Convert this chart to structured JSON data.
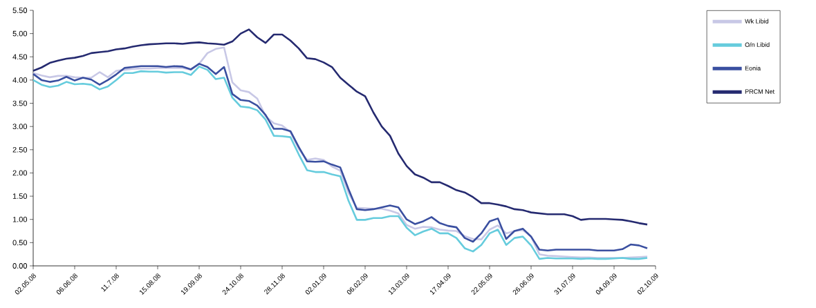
{
  "chart_data": {
    "type": "line",
    "categories": [
      "02.05.08",
      null,
      null,
      null,
      null,
      "06.06.08",
      null,
      null,
      null,
      null,
      "11.7.08",
      null,
      null,
      null,
      null,
      "15.08.08",
      null,
      null,
      null,
      null,
      "19.09.08",
      null,
      null,
      null,
      null,
      "24.10.08",
      null,
      null,
      null,
      null,
      "28.11.08",
      null,
      null,
      null,
      null,
      "02.01.09",
      null,
      null,
      null,
      null,
      "06.02.09",
      null,
      null,
      null,
      null,
      "13.03.09",
      null,
      null,
      null,
      null,
      "17.04.09",
      null,
      null,
      null,
      null,
      "22.05.09",
      null,
      null,
      null,
      null,
      "26.06.09",
      null,
      null,
      null,
      null,
      "31.07.09",
      null,
      null,
      null,
      null,
      "04.09.09",
      null,
      null,
      null,
      null,
      "02.10.09"
    ],
    "series": [
      {
        "name": "Wk Libid",
        "color": "#c8c8e6",
        "values": [
          4.15,
          4.1,
          4.06,
          4.09,
          4.09,
          4.06,
          4.05,
          4.05,
          4.17,
          4.06,
          4.2,
          4.22,
          4.24,
          4.25,
          4.25,
          4.26,
          4.26,
          4.26,
          4.26,
          4.22,
          4.35,
          4.58,
          4.67,
          4.7,
          3.95,
          3.78,
          3.74,
          3.6,
          3.22,
          3.07,
          3.02,
          2.88,
          2.52,
          2.28,
          2.31,
          2.28,
          2.14,
          2.05,
          1.57,
          1.25,
          1.24,
          1.23,
          1.23,
          1.19,
          1.13,
          0.88,
          0.8,
          0.84,
          0.83,
          0.78,
          0.76,
          0.75,
          0.64,
          0.58,
          0.57,
          0.78,
          0.87,
          0.7,
          0.75,
          0.77,
          0.63,
          0.25,
          0.22,
          0.21,
          0.2,
          0.19,
          0.18,
          0.18,
          0.17,
          0.17,
          0.17,
          0.17,
          0.18,
          0.19,
          0.2,
          null
        ]
      },
      {
        "name": "O/n Libid",
        "color": "#66ccdd",
        "values": [
          4.0,
          3.9,
          3.85,
          3.88,
          3.96,
          3.91,
          3.92,
          3.9,
          3.8,
          3.86,
          4.0,
          4.15,
          4.15,
          4.19,
          4.18,
          4.18,
          4.16,
          4.17,
          4.17,
          4.11,
          4.29,
          4.22,
          4.02,
          4.05,
          3.62,
          3.43,
          3.41,
          3.35,
          3.15,
          2.8,
          2.79,
          2.77,
          2.4,
          2.06,
          2.02,
          2.02,
          1.97,
          1.93,
          1.4,
          0.99,
          0.99,
          1.03,
          1.03,
          1.07,
          1.07,
          0.82,
          0.66,
          0.74,
          0.8,
          0.7,
          0.7,
          0.6,
          0.38,
          0.31,
          0.45,
          0.7,
          0.78,
          0.45,
          0.6,
          0.63,
          0.44,
          0.15,
          0.17,
          0.16,
          0.16,
          0.16,
          0.15,
          0.16,
          0.15,
          0.15,
          0.16,
          0.17,
          0.15,
          0.15,
          0.17,
          null
        ]
      },
      {
        "name": "Eonia",
        "color": "#3a4fa0",
        "values": [
          4.13,
          4.0,
          3.96,
          3.99,
          4.07,
          3.99,
          4.05,
          4.01,
          3.9,
          4.0,
          4.12,
          4.26,
          4.28,
          4.3,
          4.3,
          4.3,
          4.28,
          4.3,
          4.29,
          4.23,
          4.35,
          4.28,
          4.13,
          4.28,
          3.7,
          3.57,
          3.55,
          3.45,
          3.25,
          2.95,
          2.95,
          2.9,
          2.56,
          2.25,
          2.24,
          2.25,
          2.18,
          2.12,
          1.65,
          1.22,
          1.2,
          1.22,
          1.26,
          1.3,
          1.26,
          1.0,
          0.9,
          0.96,
          1.05,
          0.92,
          0.86,
          0.83,
          0.6,
          0.52,
          0.7,
          0.96,
          1.02,
          0.58,
          0.75,
          0.8,
          0.63,
          0.35,
          0.33,
          0.35,
          0.35,
          0.35,
          0.35,
          0.35,
          0.33,
          0.33,
          0.33,
          0.36,
          0.46,
          0.44,
          0.38,
          null
        ]
      },
      {
        "name": "PRCM Net",
        "color": "#252a70",
        "values": [
          4.2,
          4.27,
          4.37,
          4.42,
          4.46,
          4.48,
          4.52,
          4.58,
          4.6,
          4.62,
          4.66,
          4.68,
          4.72,
          4.75,
          4.77,
          4.78,
          4.79,
          4.79,
          4.78,
          4.8,
          4.81,
          4.79,
          4.78,
          4.76,
          4.83,
          5.0,
          5.09,
          4.92,
          4.8,
          4.98,
          4.98,
          4.85,
          4.68,
          4.47,
          4.45,
          4.38,
          4.28,
          4.05,
          3.9,
          3.75,
          3.65,
          3.3,
          3.0,
          2.8,
          2.42,
          2.15,
          1.97,
          1.9,
          1.8,
          1.8,
          1.72,
          1.63,
          1.58,
          1.48,
          1.35,
          1.35,
          1.32,
          1.28,
          1.22,
          1.2,
          1.15,
          1.13,
          1.11,
          1.11,
          1.11,
          1.07,
          0.99,
          1.01,
          1.01,
          1.01,
          1.0,
          0.99,
          0.96,
          0.92,
          0.89,
          null
        ]
      }
    ],
    "ylim": [
      0,
      5.5
    ],
    "yticks": [
      {
        "value": 0,
        "label": "0.00"
      },
      {
        "value": 0.5,
        "label": "0.50"
      },
      {
        "value": 1,
        "label": "1.00"
      },
      {
        "value": 1.5,
        "label": "1.50"
      },
      {
        "value": 2,
        "label": "2.00"
      },
      {
        "value": 2.5,
        "label": "2.50"
      },
      {
        "value": 3,
        "label": "3.00"
      },
      {
        "value": 3.5,
        "label": "3.50"
      },
      {
        "value": 4,
        "label": "4.00"
      },
      {
        "value": 4.5,
        "label": "4.50"
      },
      {
        "value": 5,
        "label": "5.00"
      },
      {
        "value": 5.5,
        "label": "5.50"
      }
    ],
    "grid": false,
    "legend": "right",
    "marker": "none",
    "line_style": "solid"
  }
}
